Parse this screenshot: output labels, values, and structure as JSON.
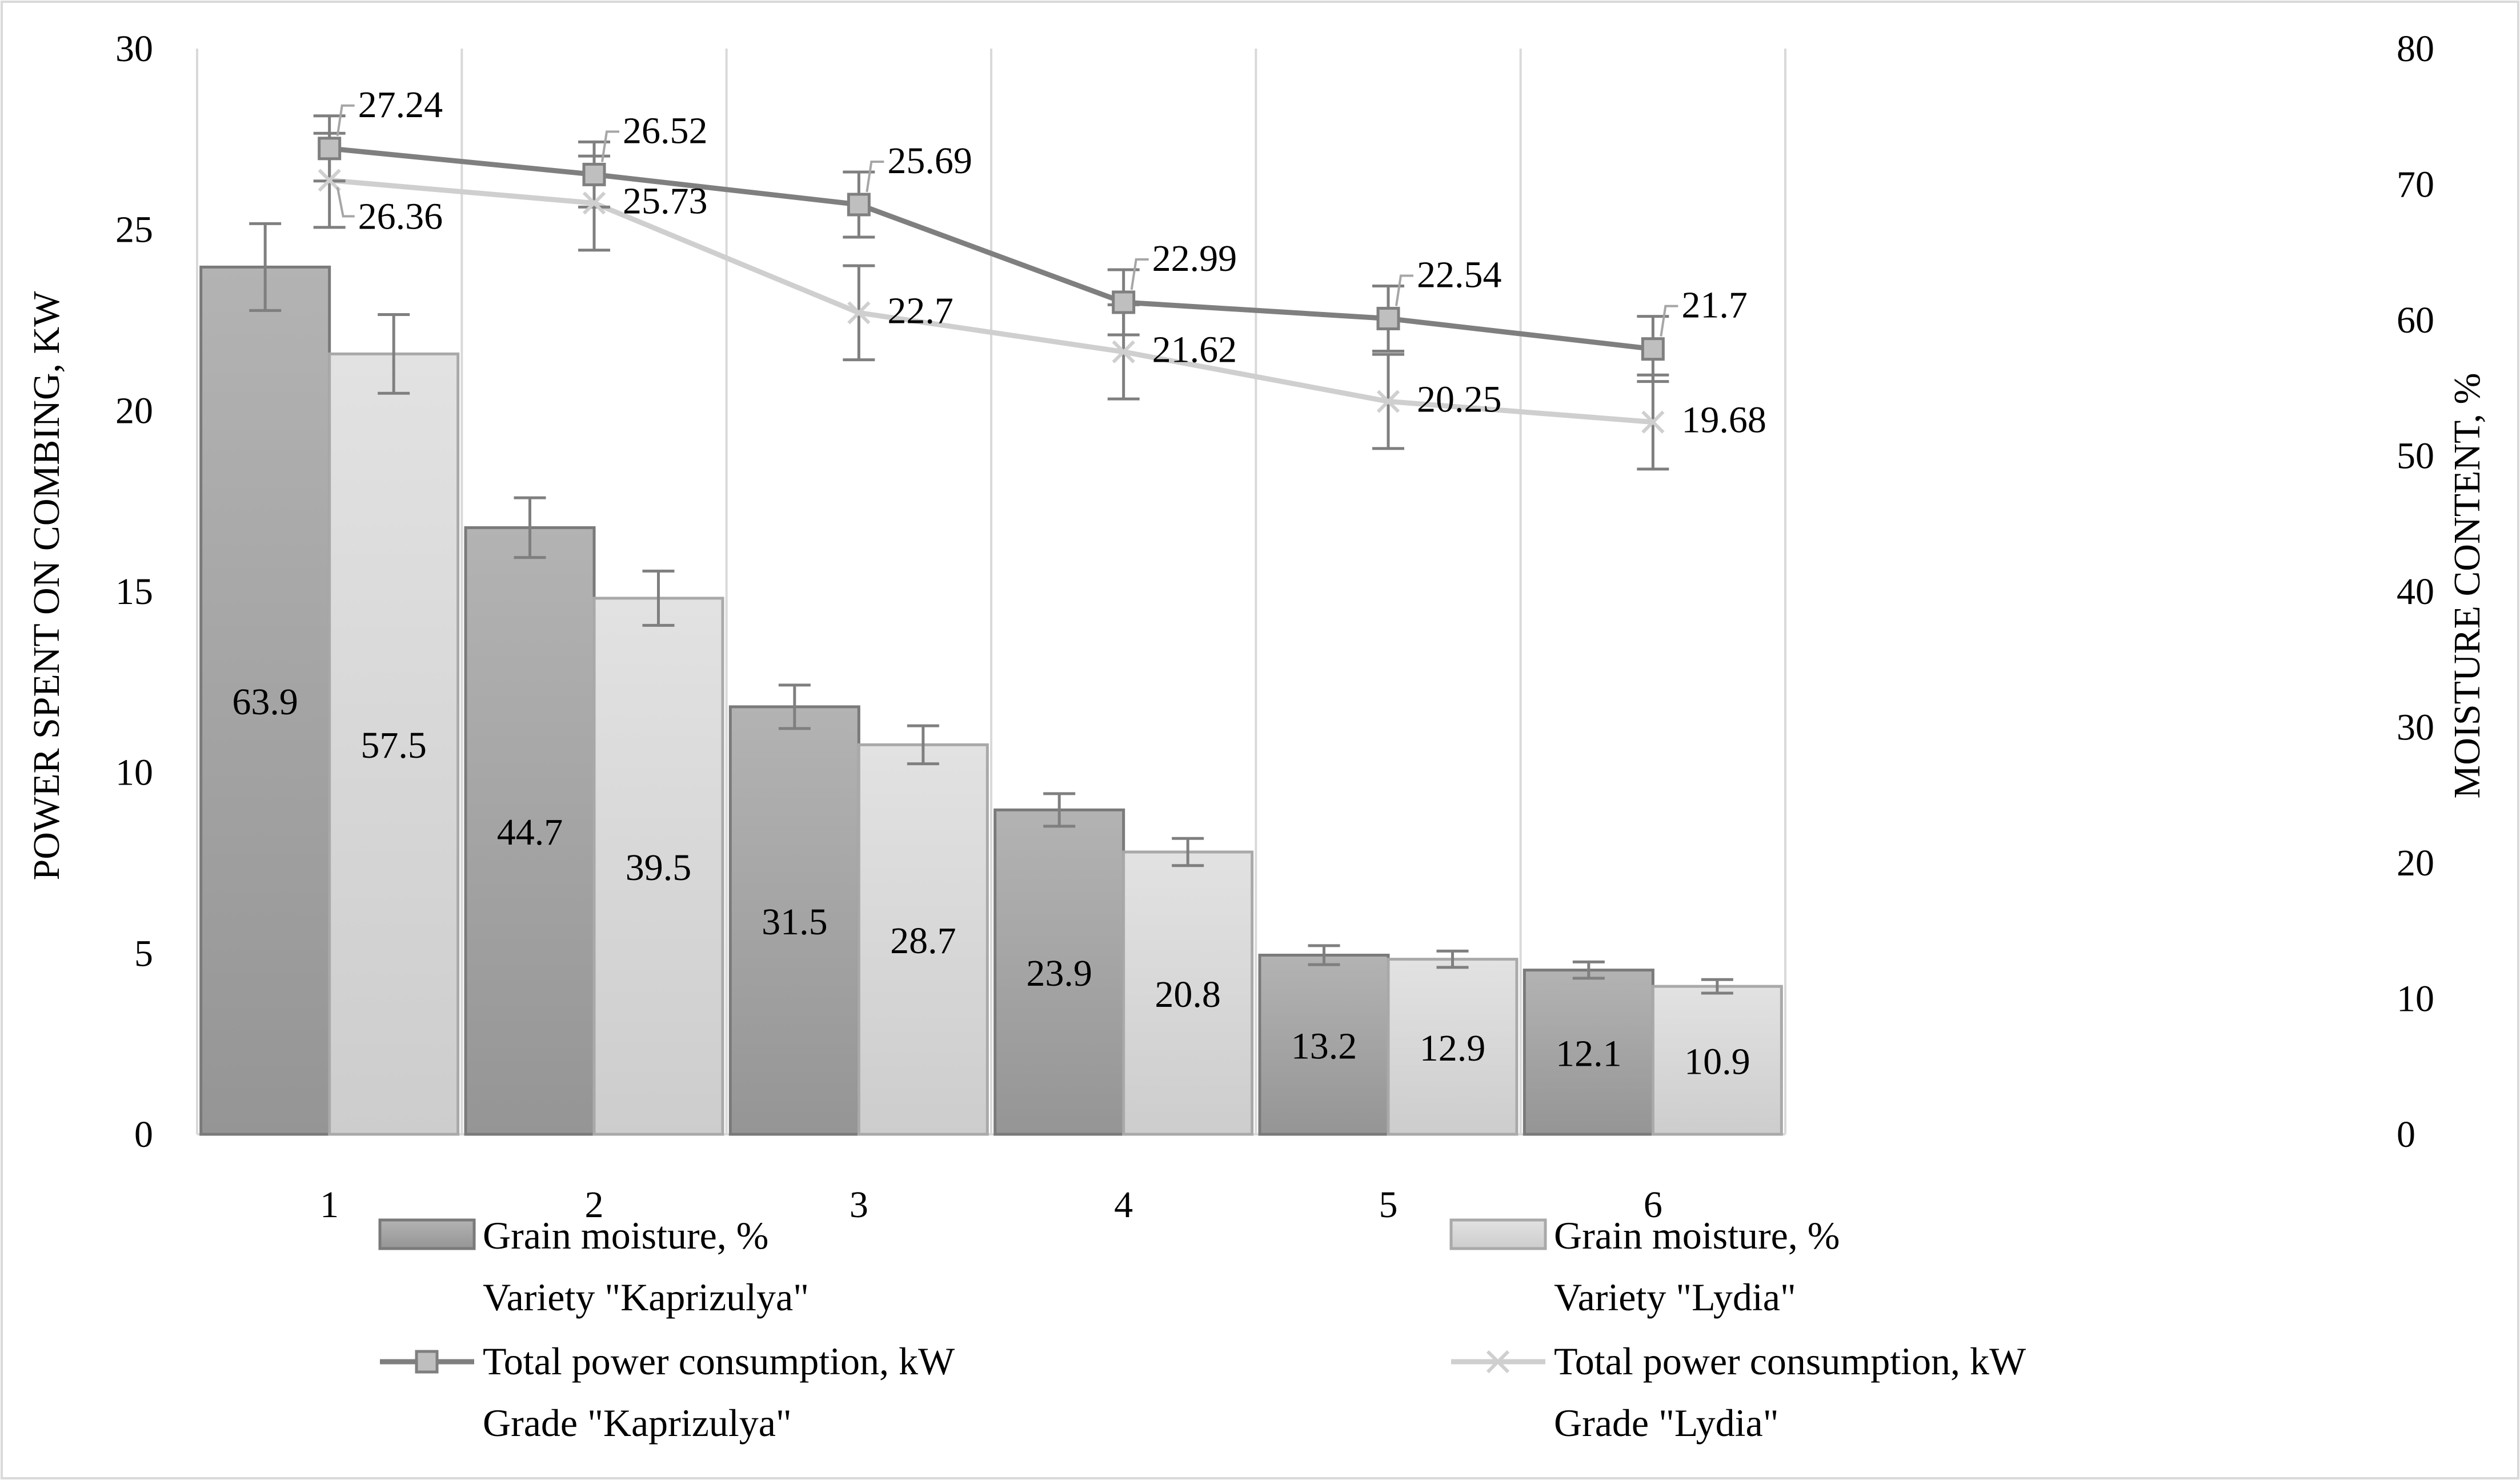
{
  "chart_data": {
    "type": "bar",
    "title": "",
    "xlabel": "",
    "ylabel": "POWER SPENT ON COMBING, KW",
    "y2label": "MOISTURE CONTENT, %",
    "ylim": [
      0,
      30
    ],
    "y2lim": [
      0,
      80
    ],
    "yticks": [
      "0",
      "5",
      "10",
      "15",
      "20",
      "25",
      "30"
    ],
    "y2ticks": [
      "0",
      "10",
      "20",
      "30",
      "40",
      "50",
      "60",
      "70",
      "80"
    ],
    "categories": [
      "1",
      "2",
      "3",
      "4",
      "5",
      "6"
    ],
    "grid": "vertical separators between categories",
    "legend_position": "bottom",
    "bar_series": [
      {
        "name": "Grain moisture, %",
        "name_line2": "Variety \"Kaprizulya\"",
        "axis": "right",
        "values": [
          63.9,
          44.7,
          31.5,
          23.9,
          13.2,
          12.1
        ],
        "labels": [
          "63.9",
          "44.7",
          "31.5",
          "23.9",
          "13.2",
          "12.1"
        ],
        "error": [
          3.2,
          2.2,
          1.6,
          1.2,
          0.7,
          0.6
        ],
        "color_top": "#b3b3b3",
        "color_bottom": "#959595",
        "stroke": "#7a7a7a"
      },
      {
        "name": "Grain moisture, %",
        "name_line2": "Variety \"Lydia\"",
        "axis": "right",
        "values": [
          57.5,
          39.5,
          28.7,
          20.8,
          12.9,
          10.9
        ],
        "labels": [
          "57.5",
          "39.5",
          "28.7",
          "20.8",
          "12.9",
          "10.9"
        ],
        "error": [
          2.9,
          2.0,
          1.4,
          1.0,
          0.6,
          0.5
        ],
        "color_top": "#e2e2e2",
        "color_bottom": "#cdcdcd",
        "stroke": "#a9a9a9"
      }
    ],
    "line_series": [
      {
        "name": "Total power consumption, kW",
        "name_line2": "Grade \"Kaprizulya\"",
        "axis": "left",
        "marker": "square",
        "values": [
          27.24,
          26.52,
          25.69,
          22.99,
          22.54,
          21.7
        ],
        "labels": [
          "27.24",
          "26.52",
          "25.69",
          "22.99",
          "22.54",
          "21.7"
        ],
        "error": [
          0.9,
          0.9,
          0.9,
          0.9,
          0.9,
          0.9
        ],
        "color": "#7f7f7f",
        "marker_fill": "#bfbfbf"
      },
      {
        "name": "Total power consumption, kW",
        "name_line2": "Grade \"Lydia\"",
        "axis": "left",
        "marker": "x",
        "values": [
          26.36,
          25.73,
          22.7,
          21.62,
          20.25,
          19.68
        ],
        "labels": [
          "26.36",
          "25.73",
          "22.7",
          "21.62",
          "20.25",
          "19.68"
        ],
        "error": [
          1.3,
          1.3,
          1.3,
          1.3,
          1.3,
          1.3
        ],
        "color": "#cfcfcf"
      }
    ]
  }
}
